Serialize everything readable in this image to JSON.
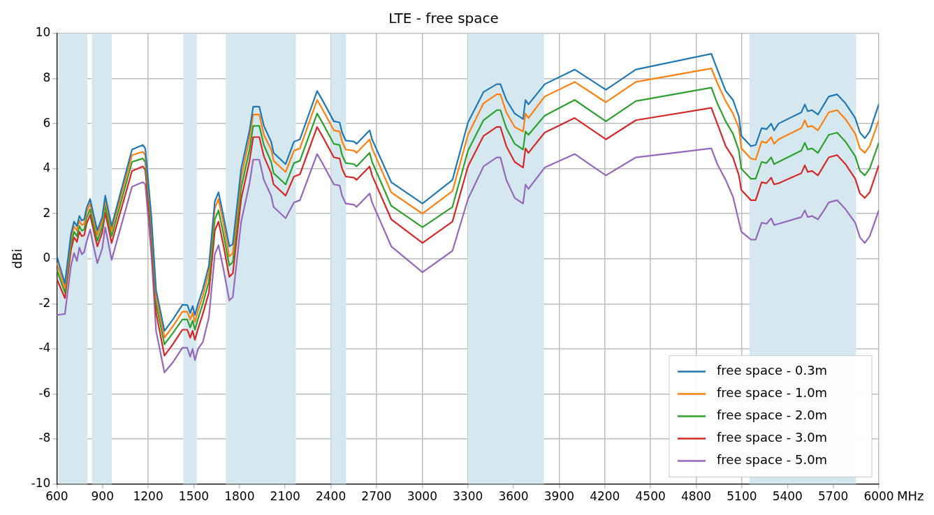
{
  "chart_data": {
    "type": "line",
    "title": "LTE - free space",
    "xlabel": "MHz",
    "ylabel": "dBi",
    "x": [
      600,
      653,
      693,
      713,
      732,
      748,
      764,
      780,
      795,
      819,
      835,
      866,
      898,
      918,
      960,
      1094,
      1165,
      1181,
      1220,
      1252,
      1307,
      1362,
      1425,
      1457,
      1476,
      1492,
      1507,
      1528,
      1559,
      1599,
      1638,
      1662,
      1693,
      1733,
      1756,
      1811,
      1866,
      1890,
      1930,
      1960,
      2008,
      2024,
      2103,
      2158,
      2197,
      2310,
      2340,
      2420,
      2458,
      2474,
      2498,
      2553,
      2569,
      2655,
      2671,
      2797,
      3002,
      3199,
      3301,
      3403,
      3490,
      3514,
      3553,
      3608,
      3663,
      3679,
      3698,
      3805,
      4002,
      4207,
      4404,
      4900,
      4939,
      4994,
      5042,
      5081,
      5097,
      5160,
      5191,
      5230,
      5262,
      5293,
      5312,
      5341,
      5491,
      5514,
      5533,
      5561,
      5600,
      5640,
      5671,
      5726,
      5781,
      5845,
      5876,
      5908,
      5940,
      6000
    ],
    "series": [
      {
        "name": "free space - 0.3m",
        "color": "#1f77b4",
        "values": [
          0.1,
          -1.1,
          1.1,
          1.65,
          1.45,
          1.9,
          1.7,
          1.75,
          2.25,
          2.65,
          2.15,
          1.25,
          1.85,
          2.8,
          1.45,
          4.85,
          5.05,
          4.9,
          1.95,
          -1.4,
          -3.2,
          -2.7,
          -2.05,
          -2.05,
          -2.4,
          -2.1,
          -2.5,
          -2.0,
          -1.35,
          -0.3,
          2.55,
          2.95,
          1.95,
          0.55,
          0.65,
          4.0,
          5.7,
          6.75,
          6.75,
          5.9,
          5.2,
          4.7,
          4.2,
          5.2,
          5.3,
          7.45,
          7.1,
          6.1,
          6.05,
          5.6,
          5.25,
          5.2,
          5.1,
          5.7,
          5.3,
          3.4,
          2.45,
          3.5,
          6.05,
          7.4,
          7.75,
          7.75,
          7.05,
          6.45,
          6.2,
          7.05,
          6.85,
          7.75,
          8.4,
          7.5,
          8.4,
          9.1,
          8.4,
          7.45,
          7.05,
          6.3,
          5.45,
          5.0,
          5.05,
          5.8,
          5.75,
          6.0,
          5.7,
          6.0,
          6.5,
          6.85,
          6.55,
          6.6,
          6.4,
          6.85,
          7.2,
          7.3,
          6.9,
          6.25,
          5.6,
          5.35,
          5.65,
          6.85
        ]
      },
      {
        "name": "free space - 1.0m",
        "color": "#ff7f0e",
        "values": [
          -0.2,
          -1.3,
          0.9,
          1.45,
          1.25,
          1.7,
          1.5,
          1.55,
          2.05,
          2.45,
          1.95,
          1.05,
          1.65,
          2.6,
          1.25,
          4.6,
          4.75,
          4.6,
          1.7,
          -1.7,
          -3.5,
          -3.0,
          -2.35,
          -2.35,
          -2.7,
          -2.4,
          -2.8,
          -2.3,
          -1.65,
          -0.6,
          2.25,
          2.65,
          1.6,
          0.1,
          0.25,
          3.6,
          5.35,
          6.4,
          6.4,
          5.5,
          4.85,
          4.35,
          3.85,
          4.8,
          4.9,
          7.05,
          6.7,
          5.7,
          5.65,
          5.2,
          4.85,
          4.8,
          4.7,
          5.3,
          4.9,
          2.95,
          2.0,
          3.0,
          5.5,
          6.9,
          7.3,
          7.3,
          6.5,
          5.85,
          5.65,
          6.45,
          6.25,
          7.2,
          7.85,
          6.95,
          7.85,
          8.45,
          7.8,
          7.0,
          6.45,
          5.8,
          4.9,
          4.45,
          4.4,
          5.2,
          5.15,
          5.4,
          5.1,
          5.3,
          5.8,
          6.15,
          5.85,
          5.9,
          5.7,
          6.15,
          6.5,
          6.6,
          6.2,
          5.55,
          4.9,
          4.7,
          5.0,
          6.15
        ]
      },
      {
        "name": "free space - 2.0m",
        "color": "#2ca02c",
        "values": [
          -0.5,
          -1.5,
          0.65,
          1.2,
          1.0,
          1.45,
          1.25,
          1.3,
          1.8,
          2.2,
          1.7,
          0.8,
          1.4,
          2.35,
          1.0,
          4.3,
          4.45,
          4.3,
          1.4,
          -2.0,
          -3.8,
          -3.3,
          -2.7,
          -2.7,
          -3.05,
          -2.75,
          -3.15,
          -2.65,
          -2.0,
          -1.0,
          1.75,
          2.15,
          1.15,
          -0.3,
          -0.15,
          3.15,
          4.85,
          5.9,
          5.9,
          5.05,
          4.3,
          3.8,
          3.3,
          4.25,
          4.35,
          6.45,
          6.1,
          5.1,
          5.05,
          4.6,
          4.25,
          4.2,
          4.1,
          4.7,
          4.3,
          2.35,
          1.4,
          2.3,
          4.8,
          6.15,
          6.6,
          6.6,
          5.8,
          5.1,
          4.85,
          5.65,
          5.5,
          6.35,
          7.05,
          6.1,
          7.0,
          7.6,
          6.9,
          6.1,
          5.55,
          4.8,
          4.0,
          3.55,
          3.55,
          4.3,
          4.25,
          4.5,
          4.2,
          4.3,
          4.8,
          5.15,
          4.85,
          4.9,
          4.7,
          5.15,
          5.5,
          5.6,
          5.2,
          4.55,
          3.9,
          3.7,
          4.0,
          5.15
        ]
      },
      {
        "name": "free space - 3.0m",
        "color": "#d62728",
        "values": [
          -0.9,
          -1.75,
          0.4,
          0.95,
          0.75,
          1.2,
          1.0,
          1.05,
          1.55,
          1.95,
          1.45,
          0.55,
          1.15,
          2.05,
          0.7,
          3.9,
          4.1,
          3.95,
          1.0,
          -2.4,
          -4.3,
          -3.8,
          -3.15,
          -3.15,
          -3.5,
          -3.2,
          -3.6,
          -3.1,
          -2.45,
          -1.5,
          1.25,
          1.65,
          0.65,
          -0.8,
          -0.65,
          2.65,
          4.35,
          5.4,
          5.4,
          4.55,
          3.8,
          3.3,
          2.8,
          3.65,
          3.75,
          5.85,
          5.5,
          4.5,
          4.45,
          4.0,
          3.65,
          3.6,
          3.5,
          4.1,
          3.7,
          1.75,
          0.7,
          1.65,
          4.1,
          5.45,
          5.85,
          5.85,
          5.0,
          4.3,
          4.05,
          4.9,
          4.7,
          5.6,
          6.25,
          5.3,
          6.15,
          6.7,
          6.0,
          5.0,
          4.5,
          3.7,
          3.05,
          2.6,
          2.6,
          3.4,
          3.35,
          3.6,
          3.3,
          3.35,
          3.8,
          4.15,
          3.85,
          3.9,
          3.7,
          4.15,
          4.5,
          4.6,
          4.2,
          3.55,
          2.9,
          2.7,
          2.95,
          4.15
        ]
      },
      {
        "name": "free space - 5.0m",
        "color": "#9467bd",
        "values": [
          -2.5,
          -2.45,
          -0.3,
          0.25,
          -0.1,
          0.5,
          0.2,
          0.3,
          0.75,
          1.3,
          0.75,
          -0.2,
          0.45,
          1.4,
          -0.05,
          3.2,
          3.4,
          3.3,
          0.3,
          -3.2,
          -5.05,
          -4.6,
          -3.95,
          -3.95,
          -4.35,
          -4.0,
          -4.5,
          -4.0,
          -3.7,
          -2.6,
          0.2,
          0.6,
          -0.4,
          -1.85,
          -1.7,
          1.65,
          3.35,
          4.4,
          4.4,
          3.5,
          2.8,
          2.3,
          1.8,
          2.5,
          2.6,
          4.65,
          4.3,
          3.3,
          3.25,
          2.8,
          2.45,
          2.4,
          2.3,
          2.9,
          2.5,
          0.55,
          -0.6,
          0.35,
          2.65,
          4.1,
          4.5,
          4.5,
          3.5,
          2.7,
          2.45,
          3.3,
          3.1,
          4.05,
          4.65,
          3.7,
          4.5,
          4.9,
          4.2,
          3.5,
          2.75,
          1.65,
          1.2,
          0.85,
          0.85,
          1.6,
          1.55,
          1.8,
          1.5,
          1.55,
          1.85,
          2.15,
          1.85,
          1.9,
          1.75,
          2.15,
          2.5,
          2.6,
          2.2,
          1.6,
          0.95,
          0.7,
          1.0,
          2.15
        ]
      }
    ],
    "bands": [
      {
        "axis": "x",
        "from": 610,
        "to": 800,
        "color": "#d5e8ef"
      },
      {
        "axis": "x",
        "from": 830,
        "to": 960,
        "color": "#d5e8ef"
      },
      {
        "axis": "x",
        "from": 1430,
        "to": 1520,
        "color": "#d5e8ef"
      },
      {
        "axis": "x",
        "from": 1710,
        "to": 2170,
        "color": "#d5e8ef"
      },
      {
        "axis": "x",
        "from": 2400,
        "to": 2500,
        "color": "#d5e8ef"
      },
      {
        "axis": "x",
        "from": 3300,
        "to": 3800,
        "color": "#d5e8ef"
      },
      {
        "axis": "x",
        "from": 5150,
        "to": 5850,
        "color": "#d5e8ef"
      }
    ],
    "xlim": [
      600,
      6000
    ],
    "xticks": [
      600,
      900,
      1200,
      1500,
      1800,
      2100,
      2400,
      2700,
      3000,
      3300,
      3600,
      3900,
      4200,
      4500,
      4800,
      5100,
      5400,
      5700,
      6000
    ],
    "ylim": [
      -10,
      10
    ],
    "yticks": [
      -10,
      -8,
      -6,
      -4,
      -2,
      0,
      2,
      4,
      6,
      8,
      10
    ],
    "grid": true,
    "legend": "bottom right",
    "marker": "none",
    "line_style": "solid"
  }
}
